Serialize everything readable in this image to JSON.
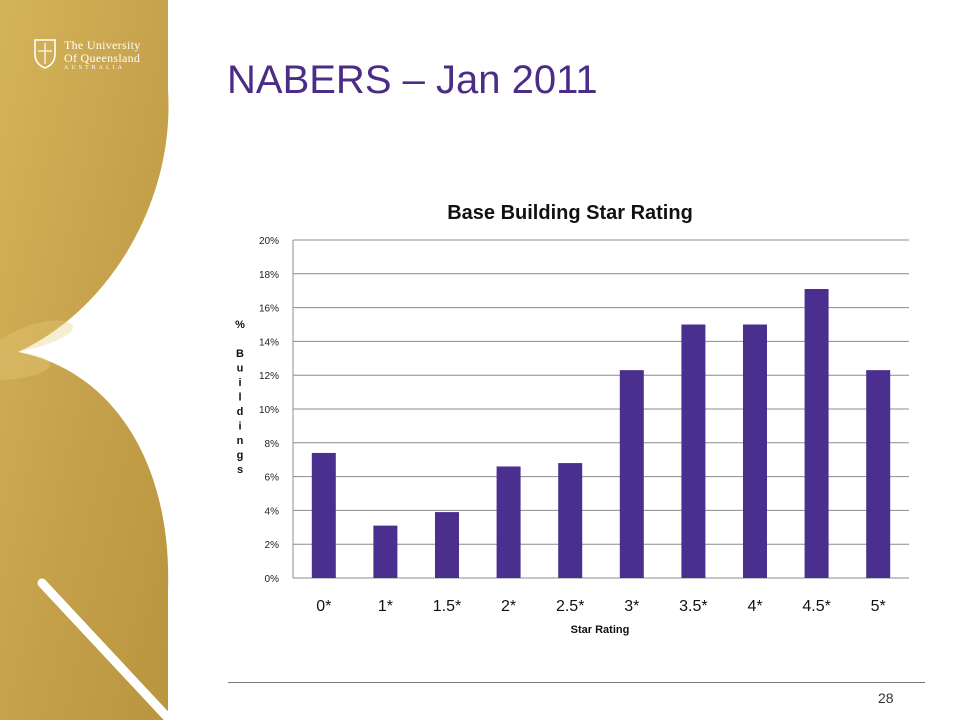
{
  "slide": {
    "title": "NABERS – Jan 2011",
    "page_number": "28"
  },
  "logo": {
    "line1": "The University",
    "line2": "Of Queensland",
    "line3": "AUSTRALIA"
  },
  "colors": {
    "bar": "#4b2f8f",
    "title": "#4b2c87",
    "gold": "#c9a84c",
    "gridline": "#8c8c8c"
  },
  "chart_data": {
    "type": "bar",
    "title": "Base Building Star Rating",
    "xlabel": "Star Rating",
    "ylabel": "% Buildings",
    "ylabel_chars": [
      "%",
      "",
      "B",
      "u",
      "i",
      "l",
      "d",
      "i",
      "n",
      "g",
      "s"
    ],
    "categories": [
      "0*",
      "1*",
      "1.5*",
      "2*",
      "2.5*",
      "3*",
      "3.5*",
      "4*",
      "4.5*",
      "5*"
    ],
    "values": [
      7.4,
      3.1,
      3.9,
      6.6,
      6.8,
      12.3,
      15.0,
      15.0,
      17.1,
      12.3
    ],
    "ylim": [
      0,
      20
    ],
    "ytick_values": [
      0,
      2,
      4,
      6,
      8,
      10,
      12,
      14,
      16,
      18,
      20
    ],
    "ytick_labels": [
      "0%",
      "2%",
      "4%",
      "6%",
      "8%",
      "10%",
      "12%",
      "14%",
      "16%",
      "18%",
      "20%"
    ],
    "grid": true,
    "legend": "none"
  }
}
